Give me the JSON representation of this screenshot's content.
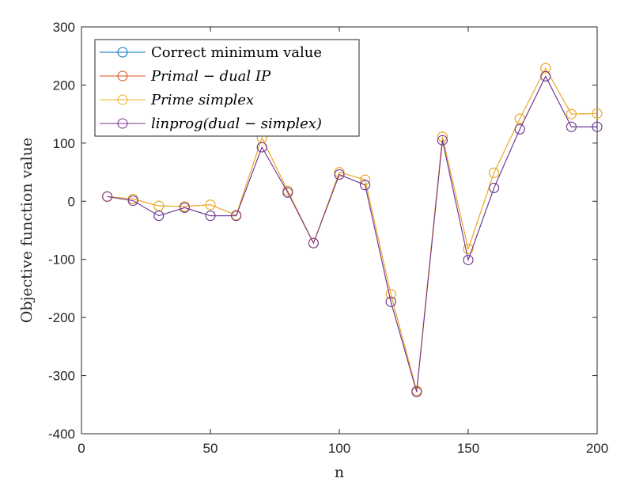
{
  "chart_data": {
    "type": "line",
    "title": "",
    "xlabel": "n",
    "ylabel": "Objective function value",
    "xlim": [
      0,
      200
    ],
    "ylim": [
      -400,
      300
    ],
    "xticks": [
      "0",
      "50",
      "100",
      "150",
      "200"
    ],
    "yticks": [
      "300",
      "200",
      "100",
      "0",
      "-100",
      "-200",
      "-300",
      "-400"
    ],
    "grid": false,
    "legend_position": "top-left",
    "marker": "open-circle",
    "x": [
      10,
      20,
      30,
      40,
      50,
      60,
      70,
      80,
      90,
      100,
      110,
      120,
      130,
      140,
      150,
      160,
      170,
      180,
      190,
      200
    ],
    "series": [
      {
        "name": "Correct minimum value",
        "color": "#0072BD",
        "values": [
          8,
          1,
          -25,
          -11,
          -25,
          -25,
          93,
          15,
          -72,
          46,
          28,
          -173,
          -328,
          105,
          -101,
          23,
          124,
          215,
          128,
          128
        ]
      },
      {
        "name": "Primal − dual IP",
        "color": "#D95319",
        "values": [
          8,
          4,
          -8,
          -9,
          -6,
          -24,
          109,
          18,
          -72,
          50,
          37,
          -160,
          -326,
          111,
          -82,
          49,
          142,
          229,
          150,
          151
        ]
      },
      {
        "name": "Prime simplex",
        "color": "#EDB120",
        "values": [
          8,
          4,
          -8,
          -9,
          -6,
          -24,
          109,
          18,
          -72,
          50,
          37,
          -160,
          -326,
          111,
          -82,
          49,
          142,
          229,
          150,
          151
        ]
      },
      {
        "name": "linprog(dual − simplex)",
        "color": "#7E2F8E",
        "values": [
          8,
          1,
          -25,
          -11,
          -25,
          -25,
          93,
          15,
          -72,
          46,
          28,
          -173,
          -328,
          105,
          -101,
          23,
          124,
          215,
          128,
          128
        ]
      }
    ]
  }
}
